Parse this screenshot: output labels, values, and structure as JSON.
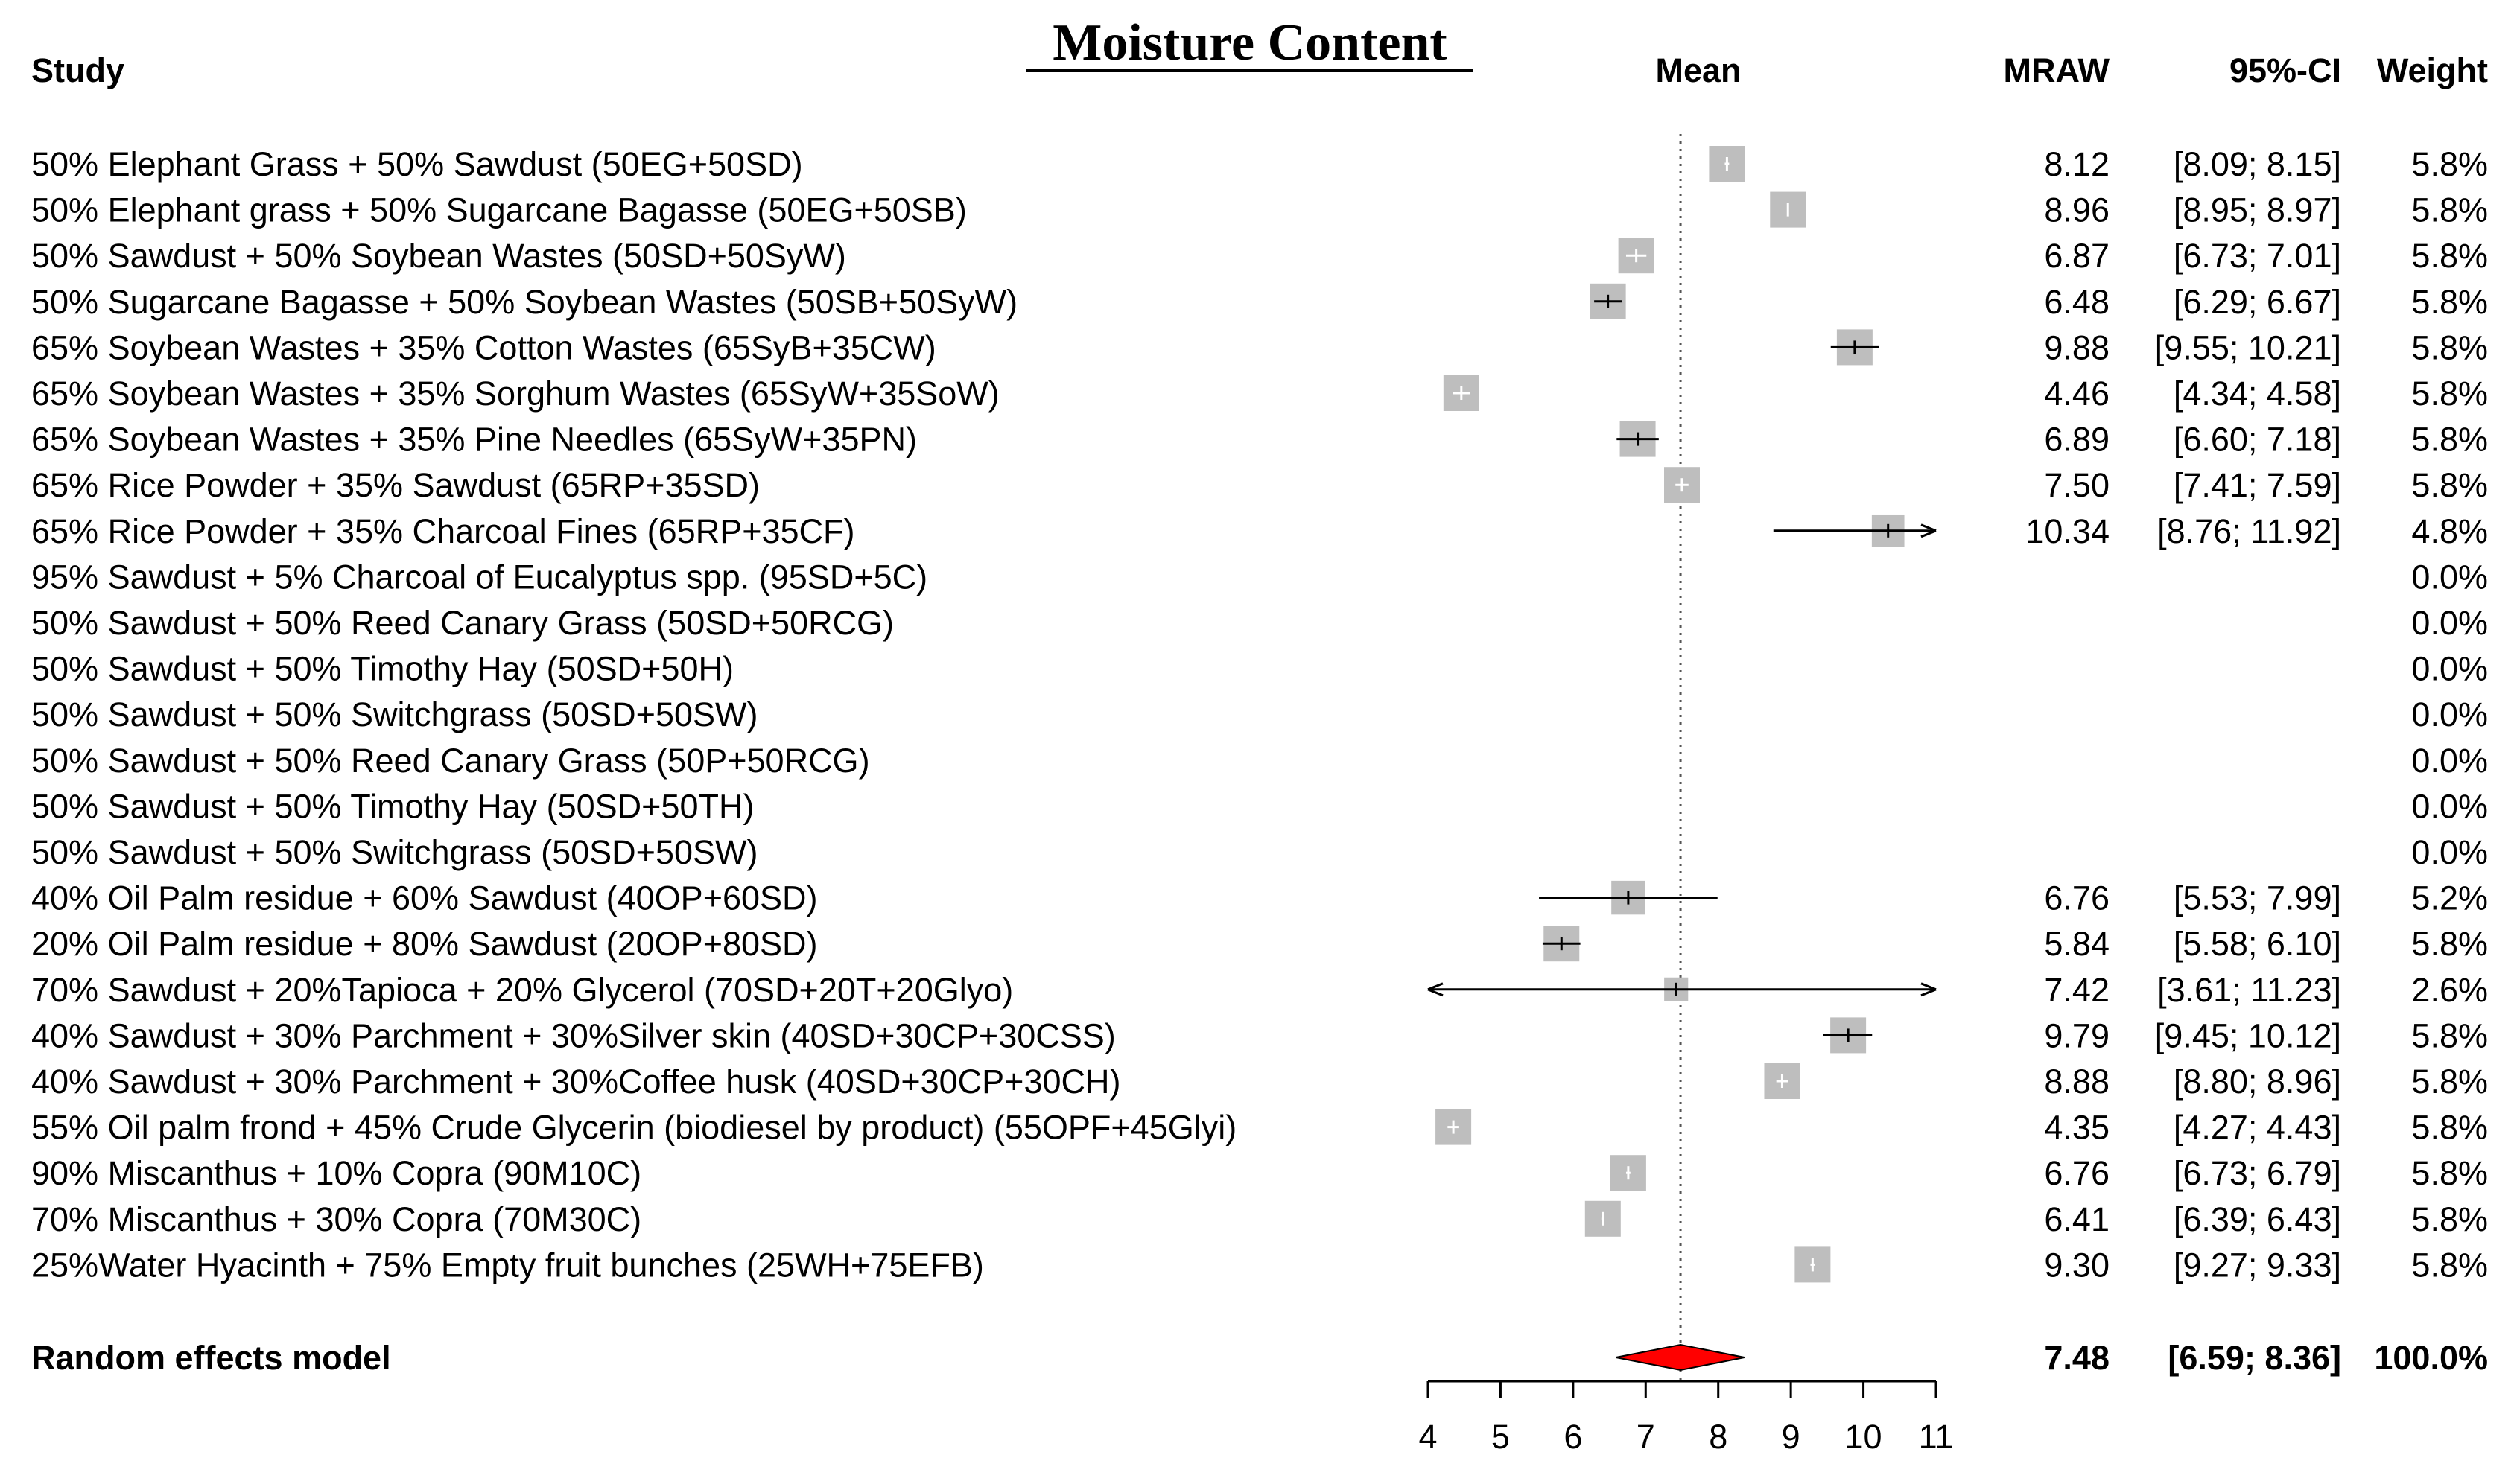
{
  "chart_data": {
    "type": "forest",
    "title": "Moisture Content",
    "headers": {
      "study": "Study",
      "effect": "Mean",
      "estimate": "MRAW",
      "ci": "95%-CI",
      "weight": "Weight"
    },
    "xlim": [
      4,
      11
    ],
    "xticks": [
      "4",
      "5",
      "6",
      "7",
      "8",
      "9",
      "10",
      "11"
    ],
    "reference_line": 7.48,
    "square_color": "#bebebe",
    "diamond_color": "#ff0000",
    "studies": [
      {
        "label": "50% Elephant Grass + 50% Sawdust (50EG+50SD)",
        "mean": 8.12,
        "lower": 8.09,
        "upper": 8.15,
        "mean_text": "8.12",
        "ci_text": "[8.09;  8.15]",
        "weight_text": "5.8%",
        "weight": 5.8
      },
      {
        "label": "50% Elephant grass + 50% Sugarcane Bagasse (50EG+50SB)",
        "mean": 8.96,
        "lower": 8.95,
        "upper": 8.97,
        "mean_text": "8.96",
        "ci_text": "[8.95;  8.97]",
        "weight_text": "5.8%",
        "weight": 5.8
      },
      {
        "label": "50% Sawdust + 50% Soybean Wastes (50SD+50SyW)",
        "mean": 6.87,
        "lower": 6.73,
        "upper": 7.01,
        "mean_text": "6.87",
        "ci_text": "[6.73;  7.01]",
        "weight_text": "5.8%",
        "weight": 5.8
      },
      {
        "label": "50% Sugarcane Bagasse + 50% Soybean Wastes (50SB+50SyW)",
        "mean": 6.48,
        "lower": 6.29,
        "upper": 6.67,
        "mean_text": "6.48",
        "ci_text": "[6.29;  6.67]",
        "weight_text": "5.8%",
        "weight": 5.8
      },
      {
        "label": "65% Soybean Wastes + 35% Cotton Wastes (65SyB+35CW)",
        "mean": 9.88,
        "lower": 9.55,
        "upper": 10.21,
        "mean_text": "9.88",
        "ci_text": "[9.55; 10.21]",
        "weight_text": "5.8%",
        "weight": 5.8
      },
      {
        "label": "65% Soybean Wastes + 35% Sorghum Wastes (65SyW+35SoW)",
        "mean": 4.46,
        "lower": 4.34,
        "upper": 4.58,
        "mean_text": "4.46",
        "ci_text": "[4.34;  4.58]",
        "weight_text": "5.8%",
        "weight": 5.8
      },
      {
        "label": "65% Soybean Wastes + 35% Pine Needles (65SyW+35PN)",
        "mean": 6.89,
        "lower": 6.6,
        "upper": 7.18,
        "mean_text": "6.89",
        "ci_text": "[6.60;  7.18]",
        "weight_text": "5.8%",
        "weight": 5.8
      },
      {
        "label": "65% Rice Powder + 35% Sawdust (65RP+35SD)",
        "mean": 7.5,
        "lower": 7.41,
        "upper": 7.59,
        "mean_text": "7.50",
        "ci_text": "[7.41;  7.59]",
        "weight_text": "5.8%",
        "weight": 5.8
      },
      {
        "label": "65% Rice Powder + 35% Charcoal Fines (65RP+35CF)",
        "mean": 10.34,
        "lower": 8.76,
        "upper": 11.92,
        "mean_text": "10.34",
        "ci_text": "[8.76; 11.92]",
        "weight_text": "4.8%",
        "weight": 4.8
      },
      {
        "label": "95% Sawdust + 5% Charcoal of Eucalyptus spp. (95SD+5C)",
        "mean": null,
        "lower": null,
        "upper": null,
        "mean_text": "",
        "ci_text": "",
        "weight_text": "0.0%",
        "weight": 0
      },
      {
        "label": "50% Sawdust + 50% Reed Canary Grass  (50SD+50RCG)",
        "mean": null,
        "lower": null,
        "upper": null,
        "mean_text": "",
        "ci_text": "",
        "weight_text": "0.0%",
        "weight": 0
      },
      {
        "label": "50% Sawdust + 50% Timothy Hay (50SD+50H)",
        "mean": null,
        "lower": null,
        "upper": null,
        "mean_text": "",
        "ci_text": "",
        "weight_text": "0.0%",
        "weight": 0
      },
      {
        "label": "50% Sawdust + 50% Switchgrass (50SD+50SW)",
        "mean": null,
        "lower": null,
        "upper": null,
        "mean_text": "",
        "ci_text": "",
        "weight_text": "0.0%",
        "weight": 0
      },
      {
        "label": "50% Sawdust + 50% Reed Canary Grass  (50P+50RCG)",
        "mean": null,
        "lower": null,
        "upper": null,
        "mean_text": "",
        "ci_text": "",
        "weight_text": "0.0%",
        "weight": 0
      },
      {
        "label": "50% Sawdust + 50% Timothy Hay (50SD+50TH)",
        "mean": null,
        "lower": null,
        "upper": null,
        "mean_text": "",
        "ci_text": "",
        "weight_text": "0.0%",
        "weight": 0
      },
      {
        "label": "50% Sawdust + 50% Switchgrass (50SD+50SW)",
        "mean": null,
        "lower": null,
        "upper": null,
        "mean_text": "",
        "ci_text": "",
        "weight_text": "0.0%",
        "weight": 0
      },
      {
        "label": "40% Oil Palm residue + 60% Sawdust (40OP+60SD)",
        "mean": 6.76,
        "lower": 5.53,
        "upper": 7.99,
        "mean_text": "6.76",
        "ci_text": "[5.53;  7.99]",
        "weight_text": "5.2%",
        "weight": 5.2
      },
      {
        "label": "20% Oil Palm residue + 80% Sawdust (20OP+80SD)",
        "mean": 5.84,
        "lower": 5.58,
        "upper": 6.1,
        "mean_text": "5.84",
        "ci_text": "[5.58;  6.10]",
        "weight_text": "5.8%",
        "weight": 5.8
      },
      {
        "label": "70% Sawdust + 20%Tapioca + 20% Glycerol (70SD+20T+20Glyo)",
        "mean": 7.42,
        "lower": 3.61,
        "upper": 11.23,
        "mean_text": "7.42",
        "ci_text": "[3.61; 11.23]",
        "weight_text": "2.6%",
        "weight": 2.6
      },
      {
        "label": "40% Sawdust + 30% Parchment + 30%Silver skin (40SD+30CP+30CSS)",
        "mean": 9.79,
        "lower": 9.45,
        "upper": 10.12,
        "mean_text": "9.79",
        "ci_text": "[9.45; 10.12]",
        "weight_text": "5.8%",
        "weight": 5.8
      },
      {
        "label": "40% Sawdust + 30% Parchment + 30%Coffee husk (40SD+30CP+30CH)",
        "mean": 8.88,
        "lower": 8.8,
        "upper": 8.96,
        "mean_text": "8.88",
        "ci_text": "[8.80;  8.96]",
        "weight_text": "5.8%",
        "weight": 5.8
      },
      {
        "label": "55% Oil palm frond + 45% Crude Glycerin (biodiesel by product) (55OPF+45Glyi)",
        "mean": 4.35,
        "lower": 4.27,
        "upper": 4.43,
        "mean_text": "4.35",
        "ci_text": "[4.27;  4.43]",
        "weight_text": "5.8%",
        "weight": 5.8
      },
      {
        "label": "90% Miscanthus + 10% Copra (90M10C)",
        "mean": 6.76,
        "lower": 6.73,
        "upper": 6.79,
        "mean_text": "6.76",
        "ci_text": "[6.73;  6.79]",
        "weight_text": "5.8%",
        "weight": 5.8
      },
      {
        "label": "70% Miscanthus + 30% Copra (70M30C)",
        "mean": 6.41,
        "lower": 6.39,
        "upper": 6.43,
        "mean_text": "6.41",
        "ci_text": "[6.39;  6.43]",
        "weight_text": "5.8%",
        "weight": 5.8
      },
      {
        "label": "25%Water Hyacinth + 75% Empty fruit bunches (25WH+75EFB)",
        "mean": 9.3,
        "lower": 9.27,
        "upper": 9.33,
        "mean_text": "9.30",
        "ci_text": "[9.27;  9.33]",
        "weight_text": "5.8%",
        "weight": 5.8
      }
    ],
    "pooled": {
      "label": "Random effects model",
      "mean": 7.48,
      "lower": 6.59,
      "upper": 8.36,
      "mean_text": "7.48",
      "ci_text": "[6.59;  8.36]",
      "weight_text": "100.0%"
    }
  }
}
